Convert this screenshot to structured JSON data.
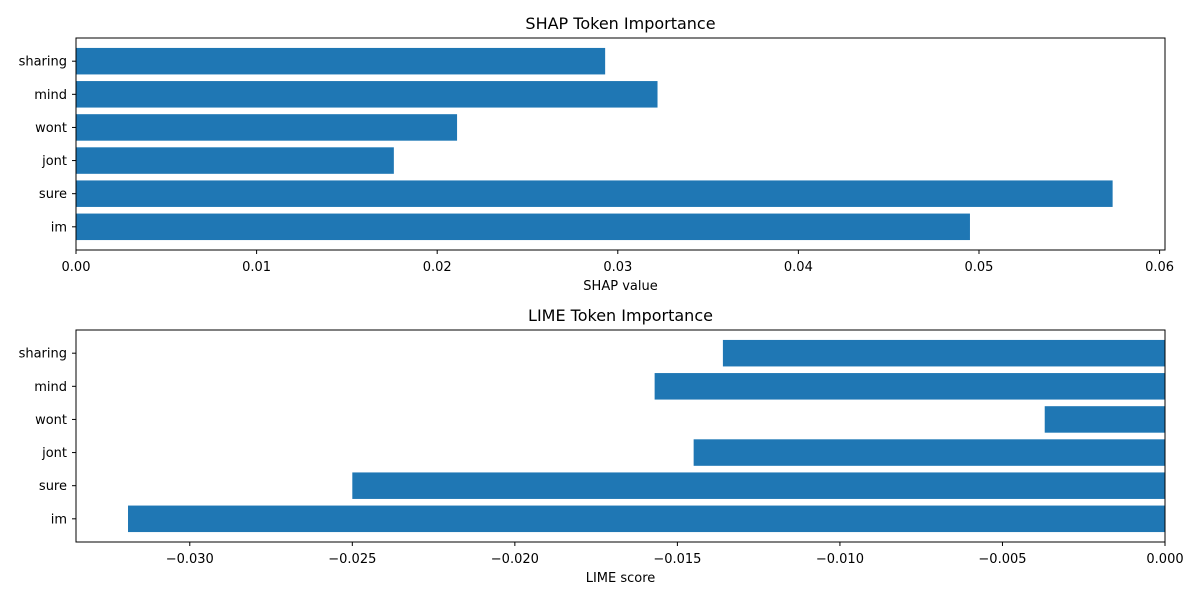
{
  "chart_data": [
    {
      "type": "bar",
      "orientation": "horizontal",
      "title": "SHAP Token Importance",
      "xlabel": "SHAP value",
      "ylabel": "",
      "categories": [
        "im",
        "sure",
        "jont",
        "wont",
        "mind",
        "sharing"
      ],
      "values": [
        0.0495,
        0.0574,
        0.0176,
        0.0211,
        0.0322,
        0.0293
      ],
      "xlim": [
        0,
        0.0603
      ],
      "xticks": [
        0,
        0.01,
        0.02,
        0.03,
        0.04,
        0.05,
        0.06
      ],
      "xtick_labels": [
        "0.00",
        "0.01",
        "0.02",
        "0.03",
        "0.04",
        "0.05",
        "0.06"
      ],
      "grid": false,
      "color": "#1f77b4"
    },
    {
      "type": "bar",
      "orientation": "horizontal",
      "title": "LIME Token Importance",
      "xlabel": "LIME score",
      "ylabel": "",
      "categories": [
        "im",
        "sure",
        "jont",
        "wont",
        "mind",
        "sharing"
      ],
      "values": [
        -0.0319,
        -0.025,
        -0.0145,
        -0.0037,
        -0.0157,
        -0.0136
      ],
      "xlim": [
        -0.0335,
        0
      ],
      "xticks": [
        -0.03,
        -0.025,
        -0.02,
        -0.015,
        -0.01,
        -0.005,
        0
      ],
      "xtick_labels": [
        "−0.030",
        "−0.025",
        "−0.020",
        "−0.015",
        "−0.010",
        "−0.005",
        "0.000"
      ],
      "grid": false,
      "color": "#1f77b4"
    }
  ]
}
